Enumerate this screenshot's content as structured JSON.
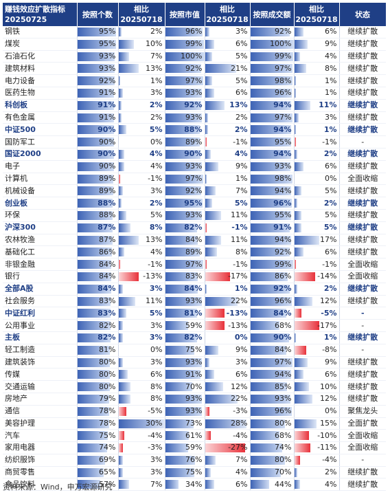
{
  "header": {
    "col0": [
      "赚钱效应扩散指标",
      "20250725"
    ],
    "col1": "按照个数",
    "col2": [
      "相比",
      "20250718"
    ],
    "col3": "按照市值",
    "col4": [
      "相比",
      "20250718"
    ],
    "col5": "按照成交额",
    "col6": [
      "相比",
      "20250718"
    ],
    "col7": "状态"
  },
  "colors": {
    "header_bg": "#1f3f86",
    "bar_positive": "#3d63b5",
    "bar_negative": "#e8313a",
    "bold_row": "#1f3f86"
  },
  "rows": [
    {
      "name": "钢铁",
      "bold": false,
      "count": "95%",
      "count_v": 95,
      "count_chg": "2%",
      "count_chg_v": 2,
      "mcap": "96%",
      "mcap_v": 96,
      "mcap_chg": "3%",
      "mcap_chg_v": 3,
      "turnover": "92%",
      "turnover_v": 92,
      "turnover_chg": "6%",
      "turnover_chg_v": 6,
      "status": "继续扩散"
    },
    {
      "name": "煤炭",
      "bold": false,
      "count": "95%",
      "count_v": 95,
      "count_chg": "10%",
      "count_chg_v": 10,
      "mcap": "99%",
      "mcap_v": 99,
      "mcap_chg": "6%",
      "mcap_chg_v": 6,
      "turnover": "100%",
      "turnover_v": 100,
      "turnover_chg": "9%",
      "turnover_chg_v": 9,
      "status": "继续扩散"
    },
    {
      "name": "石油石化",
      "bold": false,
      "count": "93%",
      "count_v": 93,
      "count_chg": "7%",
      "count_chg_v": 7,
      "mcap": "100%",
      "mcap_v": 100,
      "mcap_chg": "5%",
      "mcap_chg_v": 5,
      "turnover": "99%",
      "turnover_v": 99,
      "turnover_chg": "4%",
      "turnover_chg_v": 4,
      "status": "继续扩散"
    },
    {
      "name": "建筑材料",
      "bold": false,
      "count": "93%",
      "count_v": 93,
      "count_chg": "13%",
      "count_chg_v": 13,
      "mcap": "92%",
      "mcap_v": 92,
      "mcap_chg": "21%",
      "mcap_chg_v": 21,
      "turnover": "97%",
      "turnover_v": 97,
      "turnover_chg": "8%",
      "turnover_chg_v": 8,
      "status": "继续扩散"
    },
    {
      "name": "电力设备",
      "bold": false,
      "count": "92%",
      "count_v": 92,
      "count_chg": "1%",
      "count_chg_v": 1,
      "mcap": "97%",
      "mcap_v": 97,
      "mcap_chg": "5%",
      "mcap_chg_v": 5,
      "turnover": "98%",
      "turnover_v": 98,
      "turnover_chg": "1%",
      "turnover_chg_v": 1,
      "status": "继续扩散"
    },
    {
      "name": "医药生物",
      "bold": false,
      "count": "91%",
      "count_v": 91,
      "count_chg": "3%",
      "count_chg_v": 3,
      "mcap": "93%",
      "mcap_v": 93,
      "mcap_chg": "6%",
      "mcap_chg_v": 6,
      "turnover": "96%",
      "turnover_v": 96,
      "turnover_chg": "1%",
      "turnover_chg_v": 1,
      "status": "继续扩散"
    },
    {
      "name": "科创板",
      "bold": true,
      "count": "91%",
      "count_v": 91,
      "count_chg": "2%",
      "count_chg_v": 2,
      "mcap": "92%",
      "mcap_v": 92,
      "mcap_chg": "13%",
      "mcap_chg_v": 13,
      "turnover": "94%",
      "turnover_v": 94,
      "turnover_chg": "11%",
      "turnover_chg_v": 11,
      "status": "继续扩散"
    },
    {
      "name": "有色金属",
      "bold": false,
      "count": "91%",
      "count_v": 91,
      "count_chg": "2%",
      "count_chg_v": 2,
      "mcap": "93%",
      "mcap_v": 93,
      "mcap_chg": "2%",
      "mcap_chg_v": 2,
      "turnover": "97%",
      "turnover_v": 97,
      "turnover_chg": "3%",
      "turnover_chg_v": 3,
      "status": "继续扩散"
    },
    {
      "name": "中证500",
      "bold": true,
      "count": "90%",
      "count_v": 90,
      "count_chg": "5%",
      "count_chg_v": 5,
      "mcap": "88%",
      "mcap_v": 88,
      "mcap_chg": "2%",
      "mcap_chg_v": 2,
      "turnover": "94%",
      "turnover_v": 94,
      "turnover_chg": "1%",
      "turnover_chg_v": 1,
      "status": "继续扩散"
    },
    {
      "name": "国防军工",
      "bold": false,
      "count": "90%",
      "count_v": 90,
      "count_chg": "0%",
      "count_chg_v": 0,
      "mcap": "89%",
      "mcap_v": 89,
      "mcap_chg": "-1%",
      "mcap_chg_v": -1,
      "turnover": "95%",
      "turnover_v": 95,
      "turnover_chg": "-1%",
      "turnover_chg_v": -1,
      "status": "-"
    },
    {
      "name": "国证2000",
      "bold": true,
      "count": "90%",
      "count_v": 90,
      "count_chg": "4%",
      "count_chg_v": 4,
      "mcap": "90%",
      "mcap_v": 90,
      "mcap_chg": "4%",
      "mcap_chg_v": 4,
      "turnover": "94%",
      "turnover_v": 94,
      "turnover_chg": "2%",
      "turnover_chg_v": 2,
      "status": "继续扩散"
    },
    {
      "name": "电子",
      "bold": false,
      "count": "90%",
      "count_v": 90,
      "count_chg": "4%",
      "count_chg_v": 4,
      "mcap": "93%",
      "mcap_v": 93,
      "mcap_chg": "9%",
      "mcap_chg_v": 9,
      "turnover": "93%",
      "turnover_v": 93,
      "turnover_chg": "6%",
      "turnover_chg_v": 6,
      "status": "继续扩散"
    },
    {
      "name": "计算机",
      "bold": false,
      "count": "89%",
      "count_v": 89,
      "count_chg": "-1%",
      "count_chg_v": -1,
      "mcap": "97%",
      "mcap_v": 97,
      "mcap_chg": "1%",
      "mcap_chg_v": 1,
      "turnover": "98%",
      "turnover_v": 98,
      "turnover_chg": "0%",
      "turnover_chg_v": 0,
      "status": "全面收缩"
    },
    {
      "name": "机械设备",
      "bold": false,
      "count": "89%",
      "count_v": 89,
      "count_chg": "3%",
      "count_chg_v": 3,
      "mcap": "92%",
      "mcap_v": 92,
      "mcap_chg": "7%",
      "mcap_chg_v": 7,
      "turnover": "94%",
      "turnover_v": 94,
      "turnover_chg": "5%",
      "turnover_chg_v": 5,
      "status": "继续扩散"
    },
    {
      "name": "创业板",
      "bold": true,
      "count": "88%",
      "count_v": 88,
      "count_chg": "2%",
      "count_chg_v": 2,
      "mcap": "95%",
      "mcap_v": 95,
      "mcap_chg": "5%",
      "mcap_chg_v": 5,
      "turnover": "96%",
      "turnover_v": 96,
      "turnover_chg": "2%",
      "turnover_chg_v": 2,
      "status": "继续扩散"
    },
    {
      "name": "环保",
      "bold": false,
      "count": "88%",
      "count_v": 88,
      "count_chg": "5%",
      "count_chg_v": 5,
      "mcap": "93%",
      "mcap_v": 93,
      "mcap_chg": "11%",
      "mcap_chg_v": 11,
      "turnover": "95%",
      "turnover_v": 95,
      "turnover_chg": "5%",
      "turnover_chg_v": 5,
      "status": "继续扩散"
    },
    {
      "name": "沪深300",
      "bold": true,
      "count": "87%",
      "count_v": 87,
      "count_chg": "8%",
      "count_chg_v": 8,
      "mcap": "82%",
      "mcap_v": 82,
      "mcap_chg": "-1%",
      "mcap_chg_v": -1,
      "turnover": "91%",
      "turnover_v": 91,
      "turnover_chg": "5%",
      "turnover_chg_v": 5,
      "status": "继续扩散"
    },
    {
      "name": "农林牧渔",
      "bold": false,
      "count": "87%",
      "count_v": 87,
      "count_chg": "13%",
      "count_chg_v": 13,
      "mcap": "84%",
      "mcap_v": 84,
      "mcap_chg": "11%",
      "mcap_chg_v": 11,
      "turnover": "94%",
      "turnover_v": 94,
      "turnover_chg": "17%",
      "turnover_chg_v": 17,
      "status": "继续扩散"
    },
    {
      "name": "基础化工",
      "bold": false,
      "count": "86%",
      "count_v": 86,
      "count_chg": "4%",
      "count_chg_v": 4,
      "mcap": "89%",
      "mcap_v": 89,
      "mcap_chg": "8%",
      "mcap_chg_v": 8,
      "turnover": "92%",
      "turnover_v": 92,
      "turnover_chg": "6%",
      "turnover_chg_v": 6,
      "status": "继续扩散"
    },
    {
      "name": "非银金融",
      "bold": false,
      "count": "84%",
      "count_v": 84,
      "count_chg": "-1%",
      "count_chg_v": -1,
      "mcap": "97%",
      "mcap_v": 97,
      "mcap_chg": "-1%",
      "mcap_chg_v": -1,
      "turnover": "99%",
      "turnover_v": 99,
      "turnover_chg": "-1%",
      "turnover_chg_v": -1,
      "status": "全面收缩"
    },
    {
      "name": "银行",
      "bold": false,
      "count": "84%",
      "count_v": 84,
      "count_chg": "-13%",
      "count_chg_v": -13,
      "mcap": "83%",
      "mcap_v": 83,
      "mcap_chg": "-17%",
      "mcap_chg_v": -17,
      "turnover": "86%",
      "turnover_v": 86,
      "turnover_chg": "-14%",
      "turnover_chg_v": -14,
      "status": "全面收缩"
    },
    {
      "name": "全部A股",
      "bold": true,
      "count": "84%",
      "count_v": 84,
      "count_chg": "3%",
      "count_chg_v": 3,
      "mcap": "84%",
      "mcap_v": 84,
      "mcap_chg": "1%",
      "mcap_chg_v": 1,
      "turnover": "92%",
      "turnover_v": 92,
      "turnover_chg": "2%",
      "turnover_chg_v": 2,
      "status": "继续扩散"
    },
    {
      "name": "社会服务",
      "bold": false,
      "count": "83%",
      "count_v": 83,
      "count_chg": "11%",
      "count_chg_v": 11,
      "mcap": "93%",
      "mcap_v": 93,
      "mcap_chg": "22%",
      "mcap_chg_v": 22,
      "turnover": "96%",
      "turnover_v": 96,
      "turnover_chg": "12%",
      "turnover_chg_v": 12,
      "status": "继续扩散"
    },
    {
      "name": "中证红利",
      "bold": true,
      "count": "83%",
      "count_v": 83,
      "count_chg": "5%",
      "count_chg_v": 5,
      "mcap": "81%",
      "mcap_v": 81,
      "mcap_chg": "-13%",
      "mcap_chg_v": -13,
      "turnover": "84%",
      "turnover_v": 84,
      "turnover_chg": "-5%",
      "turnover_chg_v": -5,
      "status": "-"
    },
    {
      "name": "公用事业",
      "bold": false,
      "count": "82%",
      "count_v": 82,
      "count_chg": "3%",
      "count_chg_v": 3,
      "mcap": "59%",
      "mcap_v": 59,
      "mcap_chg": "-13%",
      "mcap_chg_v": -13,
      "turnover": "68%",
      "turnover_v": 68,
      "turnover_chg": "-17%",
      "turnover_chg_v": -17,
      "status": "-"
    },
    {
      "name": "主板",
      "bold": true,
      "count": "82%",
      "count_v": 82,
      "count_chg": "3%",
      "count_chg_v": 3,
      "mcap": "82%",
      "mcap_v": 82,
      "mcap_chg": "0%",
      "mcap_chg_v": 0,
      "turnover": "90%",
      "turnover_v": 90,
      "turnover_chg": "1%",
      "turnover_chg_v": 1,
      "status": "继续扩散"
    },
    {
      "name": "轻工制造",
      "bold": false,
      "count": "81%",
      "count_v": 81,
      "count_chg": "0%",
      "count_chg_v": 0,
      "mcap": "75%",
      "mcap_v": 75,
      "mcap_chg": "9%",
      "mcap_chg_v": 9,
      "turnover": "84%",
      "turnover_v": 84,
      "turnover_chg": "-8%",
      "turnover_chg_v": -8,
      "status": "-"
    },
    {
      "name": "建筑装饰",
      "bold": false,
      "count": "80%",
      "count_v": 80,
      "count_chg": "3%",
      "count_chg_v": 3,
      "mcap": "93%",
      "mcap_v": 93,
      "mcap_chg": "3%",
      "mcap_chg_v": 3,
      "turnover": "97%",
      "turnover_v": 97,
      "turnover_chg": "9%",
      "turnover_chg_v": 9,
      "status": "继续扩散"
    },
    {
      "name": "传媒",
      "bold": false,
      "count": "80%",
      "count_v": 80,
      "count_chg": "6%",
      "count_chg_v": 6,
      "mcap": "91%",
      "mcap_v": 91,
      "mcap_chg": "6%",
      "mcap_chg_v": 6,
      "turnover": "94%",
      "turnover_v": 94,
      "turnover_chg": "6%",
      "turnover_chg_v": 6,
      "status": "继续扩散"
    },
    {
      "name": "交通运输",
      "bold": false,
      "count": "80%",
      "count_v": 80,
      "count_chg": "8%",
      "count_chg_v": 8,
      "mcap": "70%",
      "mcap_v": 70,
      "mcap_chg": "12%",
      "mcap_chg_v": 12,
      "turnover": "85%",
      "turnover_v": 85,
      "turnover_chg": "10%",
      "turnover_chg_v": 10,
      "status": "继续扩散"
    },
    {
      "name": "房地产",
      "bold": false,
      "count": "79%",
      "count_v": 79,
      "count_chg": "8%",
      "count_chg_v": 8,
      "mcap": "93%",
      "mcap_v": 93,
      "mcap_chg": "22%",
      "mcap_chg_v": 22,
      "turnover": "93%",
      "turnover_v": 93,
      "turnover_chg": "12%",
      "turnover_chg_v": 12,
      "status": "继续扩散"
    },
    {
      "name": "通信",
      "bold": false,
      "count": "78%",
      "count_v": 78,
      "count_chg": "-5%",
      "count_chg_v": -5,
      "mcap": "93%",
      "mcap_v": 93,
      "mcap_chg": "-3%",
      "mcap_chg_v": -3,
      "turnover": "96%",
      "turnover_v": 96,
      "turnover_chg": "0%",
      "turnover_chg_v": 0,
      "status": "聚焦龙头"
    },
    {
      "name": "美容护理",
      "bold": false,
      "count": "78%",
      "count_v": 78,
      "count_chg": "30%",
      "count_chg_v": 30,
      "mcap": "73%",
      "mcap_v": 73,
      "mcap_chg": "28%",
      "mcap_chg_v": 28,
      "turnover": "80%",
      "turnover_v": 80,
      "turnover_chg": "15%",
      "turnover_chg_v": 15,
      "status": "全面扩散"
    },
    {
      "name": "汽车",
      "bold": false,
      "count": "75%",
      "count_v": 75,
      "count_chg": "-4%",
      "count_chg_v": -4,
      "mcap": "61%",
      "mcap_v": 61,
      "mcap_chg": "-4%",
      "mcap_chg_v": -4,
      "turnover": "68%",
      "turnover_v": 68,
      "turnover_chg": "-10%",
      "turnover_chg_v": -10,
      "status": "全面收缩"
    },
    {
      "name": "家用电器",
      "bold": false,
      "count": "74%",
      "count_v": 74,
      "count_chg": "-3%",
      "count_chg_v": -3,
      "mcap": "59%",
      "mcap_v": 59,
      "mcap_chg": "-27%",
      "mcap_chg_v": -27,
      "turnover": "74%",
      "turnover_v": 74,
      "turnover_chg": "-11%",
      "turnover_chg_v": -11,
      "status": "全面收缩"
    },
    {
      "name": "纺织服饰",
      "bold": false,
      "count": "69%",
      "count_v": 69,
      "count_chg": "3%",
      "count_chg_v": 3,
      "mcap": "76%",
      "mcap_v": 76,
      "mcap_chg": "7%",
      "mcap_chg_v": 7,
      "turnover": "80%",
      "turnover_v": 80,
      "turnover_chg": "-4%",
      "turnover_chg_v": -4,
      "status": "-"
    },
    {
      "name": "商贸零售",
      "bold": false,
      "count": "65%",
      "count_v": 65,
      "count_chg": "3%",
      "count_chg_v": 3,
      "mcap": "75%",
      "mcap_v": 75,
      "mcap_chg": "4%",
      "mcap_chg_v": 4,
      "turnover": "70%",
      "turnover_v": 70,
      "turnover_chg": "2%",
      "turnover_chg_v": 2,
      "status": "继续扩散"
    },
    {
      "name": "食品饮料",
      "bold": false,
      "count": "57%",
      "count_v": 57,
      "count_chg": "7%",
      "count_chg_v": 7,
      "mcap": "34%",
      "mcap_v": 34,
      "mcap_chg": "6%",
      "mcap_chg_v": 6,
      "turnover": "44%",
      "turnover_v": 44,
      "turnover_chg": "4%",
      "turnover_chg_v": 4,
      "status": "继续扩散"
    }
  ],
  "footer": {
    "source": "资料来源：Wind，申万宏源研究"
  }
}
